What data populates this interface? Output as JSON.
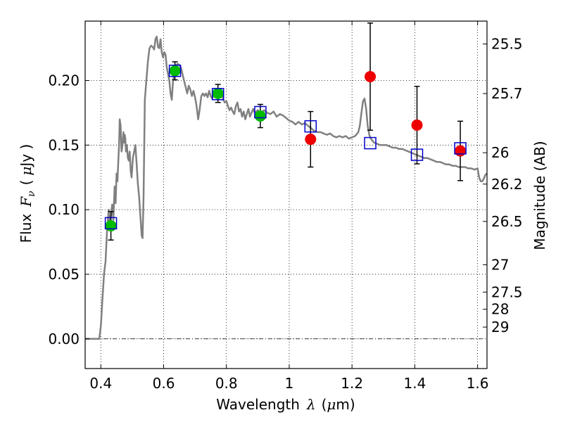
{
  "chart_data": {
    "type": "scatter",
    "title": "",
    "xlabel": "Wavelength",
    "xlabel_symbol": "λ",
    "xlabel_unit_open": "(",
    "xlabel_unit_mu": "μ",
    "xlabel_unit_close": "m)",
    "ylabel_text": "Flux",
    "ylabel_symbol": "F",
    "ylabel_sub": "ν",
    "ylabel_unit_open": "(",
    "ylabel_unit_mu": "μ",
    "ylabel_unit_close": "Jy )",
    "y2label": "Magnitude (AB)",
    "xlim": [
      0.35,
      1.63
    ],
    "ylim": [
      -0.023,
      0.246
    ],
    "grid": true,
    "x_ticks": [
      0.4,
      0.6,
      0.8,
      1.0,
      1.2,
      1.4,
      1.6
    ],
    "x_tick_labels": [
      "0.4",
      "0.6",
      "0.8",
      "1",
      "1.2",
      "1.4",
      "1.6"
    ],
    "y_ticks": [
      0.0,
      0.05,
      0.1,
      0.15,
      0.2
    ],
    "y_tick_labels": [
      "0.00",
      "0.05",
      "0.10",
      "0.15",
      "0.20"
    ],
    "y2_ticks": [
      {
        "label": "25.5",
        "flux": 0.2283
      },
      {
        "label": "25.7",
        "flux": 0.1899
      },
      {
        "label": "26",
        "flux": 0.1441
      },
      {
        "label": "26.2",
        "flux": 0.1198
      },
      {
        "label": "26.5",
        "flux": 0.0909
      },
      {
        "label": "27",
        "flux": 0.0574
      },
      {
        "label": "27.5",
        "flux": 0.0362
      },
      {
        "label": "28",
        "flux": 0.0229
      },
      {
        "label": "29",
        "flux": 0.0091
      }
    ],
    "series": [
      {
        "name": "model spectrum",
        "kind": "line",
        "color": "#808080",
        "points": [
          [
            0.35,
            0.0
          ],
          [
            0.395,
            0.0
          ],
          [
            0.4,
            0.01
          ],
          [
            0.405,
            0.03
          ],
          [
            0.41,
            0.05
          ],
          [
            0.415,
            0.06
          ],
          [
            0.42,
            0.085
          ],
          [
            0.425,
            0.1
          ],
          [
            0.428,
            0.088
          ],
          [
            0.432,
            0.095
          ],
          [
            0.436,
            0.104
          ],
          [
            0.44,
            0.092
          ],
          [
            0.444,
            0.118
          ],
          [
            0.447,
            0.105
          ],
          [
            0.45,
            0.128
          ],
          [
            0.453,
            0.122
          ],
          [
            0.456,
            0.14
          ],
          [
            0.458,
            0.15
          ],
          [
            0.46,
            0.17
          ],
          [
            0.463,
            0.165
          ],
          [
            0.466,
            0.145
          ],
          [
            0.469,
            0.15
          ],
          [
            0.472,
            0.16
          ],
          [
            0.474,
            0.152
          ],
          [
            0.476,
            0.158
          ],
          [
            0.478,
            0.155
          ],
          [
            0.48,
            0.145
          ],
          [
            0.483,
            0.15
          ],
          [
            0.486,
            0.14
          ],
          [
            0.489,
            0.138
          ],
          [
            0.492,
            0.145
          ],
          [
            0.495,
            0.13
          ],
          [
            0.498,
            0.125
          ],
          [
            0.502,
            0.14
          ],
          [
            0.506,
            0.145
          ],
          [
            0.51,
            0.15
          ],
          [
            0.514,
            0.135
          ],
          [
            0.518,
            0.12
          ],
          [
            0.522,
            0.11
          ],
          [
            0.526,
            0.095
          ],
          [
            0.53,
            0.08
          ],
          [
            0.533,
            0.078
          ],
          [
            0.536,
            0.11
          ],
          [
            0.54,
            0.185
          ],
          [
            0.545,
            0.2
          ],
          [
            0.55,
            0.215
          ],
          [
            0.555,
            0.225
          ],
          [
            0.56,
            0.227
          ],
          [
            0.565,
            0.226
          ],
          [
            0.57,
            0.224
          ],
          [
            0.574,
            0.232
          ],
          [
            0.578,
            0.234
          ],
          [
            0.582,
            0.226
          ],
          [
            0.586,
            0.225
          ],
          [
            0.59,
            0.232
          ],
          [
            0.594,
            0.222
          ],
          [
            0.598,
            0.218
          ],
          [
            0.602,
            0.222
          ],
          [
            0.606,
            0.22
          ],
          [
            0.61,
            0.21
          ],
          [
            0.614,
            0.205
          ],
          [
            0.618,
            0.2
          ],
          [
            0.622,
            0.19
          ],
          [
            0.626,
            0.185
          ],
          [
            0.63,
            0.2
          ],
          [
            0.635,
            0.207
          ],
          [
            0.64,
            0.212
          ],
          [
            0.645,
            0.213
          ],
          [
            0.65,
            0.212
          ],
          [
            0.655,
            0.21
          ],
          [
            0.66,
            0.205
          ],
          [
            0.665,
            0.2
          ],
          [
            0.67,
            0.195
          ],
          [
            0.675,
            0.19
          ],
          [
            0.68,
            0.196
          ],
          [
            0.685,
            0.193
          ],
          [
            0.69,
            0.188
          ],
          [
            0.695,
            0.192
          ],
          [
            0.7,
            0.187
          ],
          [
            0.705,
            0.18
          ],
          [
            0.71,
            0.17
          ],
          [
            0.715,
            0.178
          ],
          [
            0.72,
            0.188
          ],
          [
            0.725,
            0.19
          ],
          [
            0.73,
            0.188
          ],
          [
            0.735,
            0.19
          ],
          [
            0.74,
            0.187
          ],
          [
            0.745,
            0.192
          ],
          [
            0.75,
            0.188
          ],
          [
            0.755,
            0.186
          ],
          [
            0.76,
            0.19
          ],
          [
            0.765,
            0.189
          ],
          [
            0.77,
            0.188
          ],
          [
            0.775,
            0.187
          ],
          [
            0.78,
            0.189
          ],
          [
            0.785,
            0.19
          ],
          [
            0.79,
            0.185
          ],
          [
            0.795,
            0.183
          ],
          [
            0.8,
            0.184
          ],
          [
            0.805,
            0.18
          ],
          [
            0.81,
            0.177
          ],
          [
            0.815,
            0.179
          ],
          [
            0.82,
            0.176
          ],
          [
            0.825,
            0.174
          ],
          [
            0.83,
            0.18
          ],
          [
            0.835,
            0.183
          ],
          [
            0.84,
            0.176
          ],
          [
            0.845,
            0.178
          ],
          [
            0.85,
            0.172
          ],
          [
            0.855,
            0.176
          ],
          [
            0.86,
            0.17
          ],
          [
            0.865,
            0.174
          ],
          [
            0.87,
            0.178
          ],
          [
            0.875,
            0.172
          ],
          [
            0.88,
            0.175
          ],
          [
            0.885,
            0.178
          ],
          [
            0.89,
            0.175
          ],
          [
            0.895,
            0.176
          ],
          [
            0.9,
            0.177
          ],
          [
            0.905,
            0.175
          ],
          [
            0.91,
            0.176
          ],
          [
            0.915,
            0.176
          ],
          [
            0.92,
            0.177
          ],
          [
            0.93,
            0.175
          ],
          [
            0.94,
            0.174
          ],
          [
            0.95,
            0.176
          ],
          [
            0.96,
            0.172
          ],
          [
            0.97,
            0.174
          ],
          [
            0.98,
            0.173
          ],
          [
            0.99,
            0.171
          ],
          [
            1.0,
            0.169
          ],
          [
            1.01,
            0.168
          ],
          [
            1.02,
            0.166
          ],
          [
            1.03,
            0.168
          ],
          [
            1.04,
            0.166
          ],
          [
            1.05,
            0.167
          ],
          [
            1.06,
            0.165
          ],
          [
            1.07,
            0.163
          ],
          [
            1.08,
            0.161
          ],
          [
            1.09,
            0.16
          ],
          [
            1.1,
            0.16
          ],
          [
            1.11,
            0.159
          ],
          [
            1.12,
            0.158
          ],
          [
            1.13,
            0.159
          ],
          [
            1.14,
            0.157
          ],
          [
            1.15,
            0.156
          ],
          [
            1.16,
            0.157
          ],
          [
            1.17,
            0.156
          ],
          [
            1.18,
            0.157
          ],
          [
            1.19,
            0.155
          ],
          [
            1.2,
            0.156
          ],
          [
            1.21,
            0.157
          ],
          [
            1.22,
            0.16
          ],
          [
            1.225,
            0.165
          ],
          [
            1.23,
            0.175
          ],
          [
            1.235,
            0.184
          ],
          [
            1.24,
            0.186
          ],
          [
            1.245,
            0.178
          ],
          [
            1.25,
            0.165
          ],
          [
            1.255,
            0.158
          ],
          [
            1.26,
            0.155
          ],
          [
            1.27,
            0.152
          ],
          [
            1.28,
            0.151
          ],
          [
            1.29,
            0.15
          ],
          [
            1.3,
            0.15
          ],
          [
            1.31,
            0.15
          ],
          [
            1.32,
            0.149
          ],
          [
            1.33,
            0.148
          ],
          [
            1.34,
            0.148
          ],
          [
            1.35,
            0.147
          ],
          [
            1.36,
            0.147
          ],
          [
            1.37,
            0.146
          ],
          [
            1.38,
            0.145
          ],
          [
            1.39,
            0.144
          ],
          [
            1.4,
            0.143
          ],
          [
            1.41,
            0.142
          ],
          [
            1.42,
            0.141
          ],
          [
            1.43,
            0.14
          ],
          [
            1.44,
            0.14
          ],
          [
            1.45,
            0.139
          ],
          [
            1.46,
            0.138
          ],
          [
            1.47,
            0.137
          ],
          [
            1.48,
            0.137
          ],
          [
            1.49,
            0.136
          ],
          [
            1.5,
            0.135
          ],
          [
            1.51,
            0.135
          ],
          [
            1.52,
            0.134
          ],
          [
            1.53,
            0.134
          ],
          [
            1.54,
            0.133
          ],
          [
            1.55,
            0.133
          ],
          [
            1.56,
            0.133
          ],
          [
            1.57,
            0.132
          ],
          [
            1.58,
            0.132
          ],
          [
            1.59,
            0.131
          ],
          [
            1.6,
            0.132
          ],
          [
            1.605,
            0.125
          ],
          [
            1.61,
            0.122
          ],
          [
            1.615,
            0.122
          ],
          [
            1.62,
            0.124
          ],
          [
            1.625,
            0.127
          ],
          [
            1.63,
            0.128
          ]
        ]
      },
      {
        "name": "observed flux (measurements)",
        "kind": "errorbar",
        "color": "#000000",
        "x": [
          0.432,
          0.636,
          0.773,
          0.908,
          1.068,
          1.258,
          1.407,
          1.545
        ],
        "y": [
          0.0875,
          0.2075,
          0.19,
          0.1725,
          0.1545,
          0.203,
          0.1655,
          0.1455
        ],
        "yerr_low": [
          0.011,
          0.007,
          0.007,
          0.009,
          0.0215,
          0.0415,
          0.03,
          0.023
        ],
        "yerr_high": [
          0.011,
          0.007,
          0.007,
          0.009,
          0.0215,
          0.0415,
          0.03,
          0.023
        ]
      },
      {
        "name": "model bandpass flux",
        "kind": "marker",
        "marker": "open-square",
        "color": "#0000cc",
        "x": [
          0.432,
          0.636,
          0.773,
          0.908,
          1.068,
          1.258,
          1.407,
          1.545
        ],
        "y": [
          0.0895,
          0.2075,
          0.1895,
          0.1755,
          0.1645,
          0.1515,
          0.1425,
          0.1475
        ]
      },
      {
        "name": "optical points",
        "kind": "marker",
        "marker": "filled-circle",
        "color": "#00bb00",
        "x": [
          0.432,
          0.636,
          0.773,
          0.908
        ],
        "y": [
          0.0875,
          0.2075,
          0.19,
          0.1725
        ]
      },
      {
        "name": "near-infrared points",
        "kind": "marker",
        "marker": "filled-circle",
        "color": "#ee0000",
        "x": [
          1.068,
          1.258,
          1.407,
          1.545
        ],
        "y": [
          0.1545,
          0.203,
          0.1655,
          0.1455
        ]
      }
    ]
  }
}
